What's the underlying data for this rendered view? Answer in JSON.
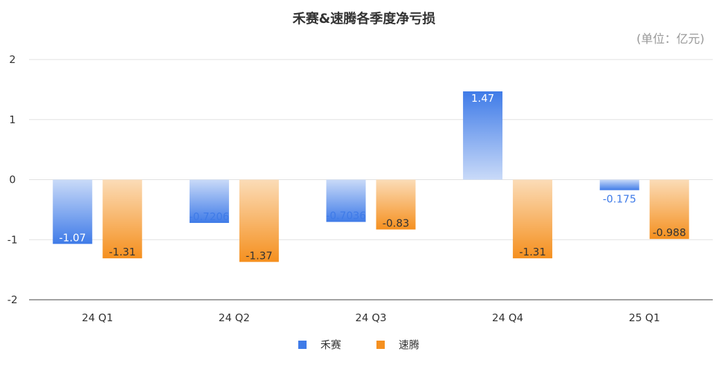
{
  "chart_data": {
    "type": "bar",
    "title": "禾赛&速腾各季度净亏损",
    "unit_note": "(单位：亿元)",
    "categories": [
      "24 Q1",
      "24 Q2",
      "24 Q3",
      "24 Q4",
      "25 Q1"
    ],
    "series": [
      {
        "name": "禾赛",
        "color": "#3f7be8",
        "values": [
          -1.07,
          -0.7206,
          -0.7036,
          1.47,
          -0.175
        ],
        "labels": [
          "-1.07",
          "-0.7206",
          "-0.7036",
          "1.47",
          "-0.175"
        ]
      },
      {
        "name": "速腾",
        "color": "#f5901f",
        "values": [
          -1.31,
          -1.37,
          -0.83,
          -1.31,
          -0.988
        ],
        "labels": [
          "-1.31",
          "-1.37",
          "-0.83",
          "-1.31",
          "-0.988"
        ]
      }
    ],
    "ylim": [
      -2,
      2
    ],
    "yticks": [
      "2",
      "1",
      "0",
      "-1",
      "-2"
    ],
    "grid": true,
    "legend": "bottom-center"
  }
}
